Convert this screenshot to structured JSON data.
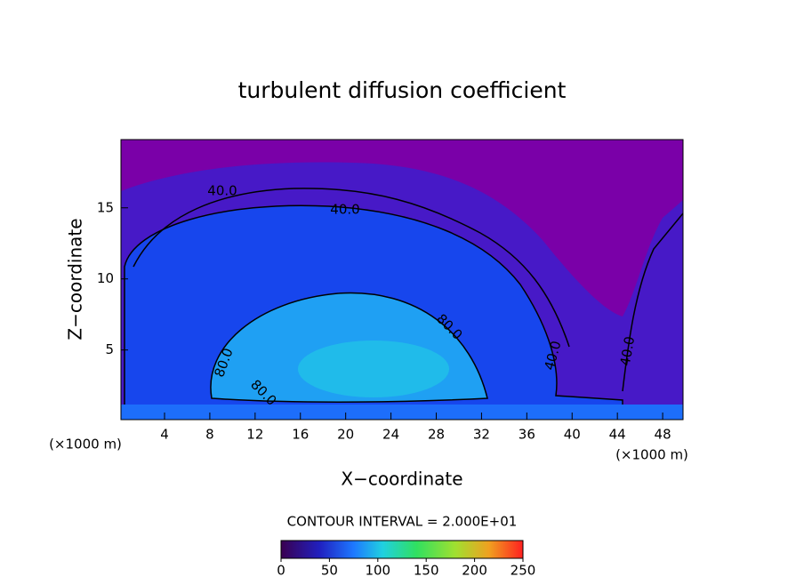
{
  "chart_data": {
    "type": "contour",
    "title": "turbulent diffusion coefficient",
    "xlabel": "X−coordinate",
    "ylabel": "Z−coordinate",
    "x_unit": "(×1000 m)",
    "xlim": [
      0.15,
      49.8
    ],
    "xticks": [
      4,
      8,
      12,
      16,
      20,
      24,
      28,
      32,
      36,
      40,
      44,
      48
    ],
    "ylim": [
      0.1,
      19.8
    ],
    "yticks": [
      5,
      10,
      15
    ],
    "contour_levels": [
      {
        "value": 40,
        "label": "40.0"
      },
      {
        "value": 80,
        "label": "80.0"
      }
    ],
    "contour_interval": {
      "value": 20,
      "label": "CONTOUR INTERVAL = 2.000E+01"
    },
    "clim": [
      0,
      250
    ],
    "colorbar_ticks": [
      0,
      50,
      100,
      150,
      200,
      250
    ]
  }
}
